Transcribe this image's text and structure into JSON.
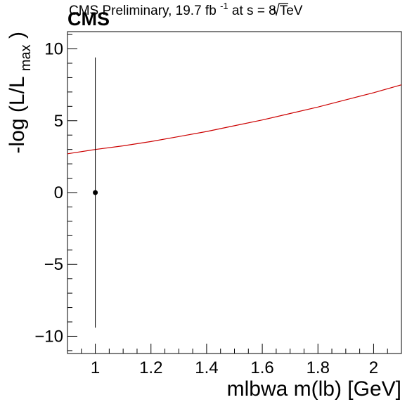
{
  "header": {
    "cms_label": "CMS",
    "preliminary_label": "CMS Preliminary, 19.7 fb",
    "lumi_superscript": "-1",
    "energy_prefix": " at  ",
    "sqrt_s": "s",
    "energy_suffix": " = 8 TeV"
  },
  "chart_data": {
    "type": "line",
    "xlabel": "mlbwa  m(lb) [GeV]",
    "ylabel_prefix": "-log (L/L",
    "ylabel_subscript": "max",
    "ylabel_suffix": ")",
    "xlim": [
      0.9,
      2.1
    ],
    "ylim": [
      -11.2,
      11.2
    ],
    "x_ticks": [
      1,
      1.2,
      1.4,
      1.6,
      1.8,
      2
    ],
    "x_tick_labels": [
      "1",
      "1.2",
      "1.4",
      "1.6",
      "1.8",
      "2"
    ],
    "y_ticks": [
      -10,
      -5,
      0,
      5,
      10
    ],
    "y_tick_labels": [
      "−10",
      "−5",
      "0",
      "5",
      "10"
    ],
    "grid": false,
    "series": [
      {
        "kind": "fit-curve",
        "color": "#cc0000",
        "x": [
          0.9,
          1.0,
          1.1,
          1.2,
          1.3,
          1.4,
          1.5,
          1.6,
          1.7,
          1.8,
          1.9,
          2.0,
          2.1
        ],
        "y": [
          2.7,
          3.0,
          3.25,
          3.55,
          3.9,
          4.25,
          4.65,
          5.05,
          5.5,
          5.95,
          6.45,
          6.95,
          7.5
        ]
      },
      {
        "kind": "point-with-error",
        "color": "#000000",
        "x": [
          1.0
        ],
        "y": [
          0.0
        ],
        "yerr_low": [
          9.4
        ],
        "yerr_high": [
          9.4
        ]
      }
    ]
  }
}
